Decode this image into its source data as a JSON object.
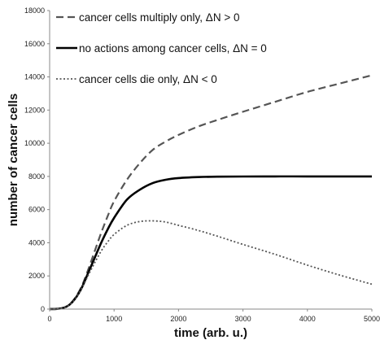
{
  "chart_data": {
    "type": "line",
    "title": "",
    "xlabel": "time (arb. u.)",
    "ylabel": "number of cancer cells",
    "xlim": [
      0,
      5000
    ],
    "ylim": [
      0,
      18000
    ],
    "xticks": [
      "0",
      "1000",
      "2000",
      "3000",
      "4000",
      "5000"
    ],
    "yticks": [
      "0",
      "2000",
      "4000",
      "6000",
      "8000",
      "10000",
      "12000",
      "14000",
      "16000",
      "18000"
    ],
    "grid": false,
    "legend": "top-left",
    "series": [
      {
        "name": "cancer cells multiply only, ΔN > 0",
        "style": "dashed",
        "color": "#555555",
        "x": [
          0,
          100,
          200,
          300,
          400,
          500,
          600,
          700,
          800,
          900,
          1000,
          1200,
          1400,
          1600,
          1800,
          2000,
          2300,
          2600,
          3000,
          3500,
          4000,
          4500,
          5000
        ],
        "y": [
          0,
          10,
          60,
          250,
          700,
          1400,
          2400,
          3500,
          4600,
          5600,
          6500,
          7800,
          8800,
          9600,
          10100,
          10500,
          11000,
          11400,
          11900,
          12500,
          13100,
          13600,
          14100
        ]
      },
      {
        "name": "no actions among cancer cells, ΔN = 0",
        "style": "solid",
        "color": "#000000",
        "x": [
          0,
          100,
          200,
          300,
          400,
          500,
          600,
          700,
          800,
          900,
          1000,
          1200,
          1400,
          1600,
          1800,
          2000,
          2300,
          2600,
          3000,
          3500,
          4000,
          4500,
          5000
        ],
        "y": [
          0,
          10,
          60,
          240,
          650,
          1300,
          2200,
          3100,
          4000,
          4800,
          5500,
          6600,
          7200,
          7600,
          7800,
          7900,
          7960,
          7985,
          7995,
          8000,
          8000,
          8000,
          8000
        ]
      },
      {
        "name": "cancer cells die only, ΔN < 0",
        "style": "dotted",
        "color": "#555555",
        "x": [
          0,
          100,
          200,
          300,
          400,
          500,
          600,
          700,
          800,
          900,
          1000,
          1200,
          1400,
          1600,
          1800,
          2000,
          2300,
          2600,
          3000,
          3500,
          4000,
          4500,
          5000
        ],
        "y": [
          0,
          10,
          60,
          230,
          620,
          1250,
          2050,
          2800,
          3500,
          4050,
          4500,
          5050,
          5280,
          5320,
          5250,
          5050,
          4750,
          4400,
          3900,
          3300,
          2650,
          2050,
          1500
        ]
      }
    ]
  }
}
